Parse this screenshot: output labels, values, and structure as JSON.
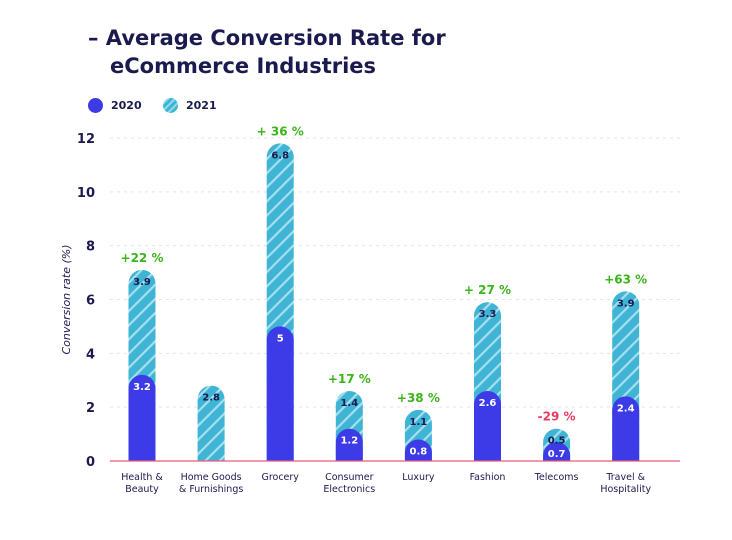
{
  "title": {
    "line1": "– Average Conversion Rate for",
    "line2": "eCommerce Industries"
  },
  "colors": {
    "c2020": "#3d3ae8",
    "c2021": "#3fb4d4",
    "positive": "#3cb41c",
    "negative": "#e83b62",
    "axis_text": "#1b1a4f",
    "baseline": "#e85a7a"
  },
  "chart_data": {
    "type": "bar",
    "stacked": true,
    "title": "– Average Conversion Rate for eCommerce Industries",
    "xlabel": "",
    "ylabel": "Conversion rate (%)",
    "ylim": [
      0,
      12
    ],
    "yticks": [
      0,
      2,
      4,
      6,
      8,
      10,
      12
    ],
    "grid": true,
    "legend_position": "top-left",
    "categories": [
      "Health &\nBeauty",
      "Home Goods\n& Furnishings",
      "Grocery",
      "Consumer\nElectronics",
      "Luxury",
      "Fashion",
      "Telecoms",
      "Travel &\nHospitality"
    ],
    "series": [
      {
        "name": "2020",
        "values": [
          3.2,
          null,
          5,
          1.2,
          0.8,
          2.6,
          0.7,
          2.4
        ],
        "labels": [
          "3.2",
          "",
          "5",
          "1.2",
          "0.8",
          "2.6",
          "0.7",
          "2.4"
        ]
      },
      {
        "name": "2021",
        "values": [
          3.9,
          2.8,
          6.8,
          1.4,
          1.1,
          3.3,
          0.5,
          3.9
        ],
        "labels": [
          "3.9",
          "2.8",
          "6.8",
          "1.4",
          "1.1",
          "3.3",
          "0.5",
          "3.9"
        ]
      }
    ],
    "annotations": [
      "+22 %",
      "",
      "+ 36 %",
      "+17 %",
      "+38 %",
      "+ 27 %",
      "-29 %",
      "+63 %"
    ]
  }
}
